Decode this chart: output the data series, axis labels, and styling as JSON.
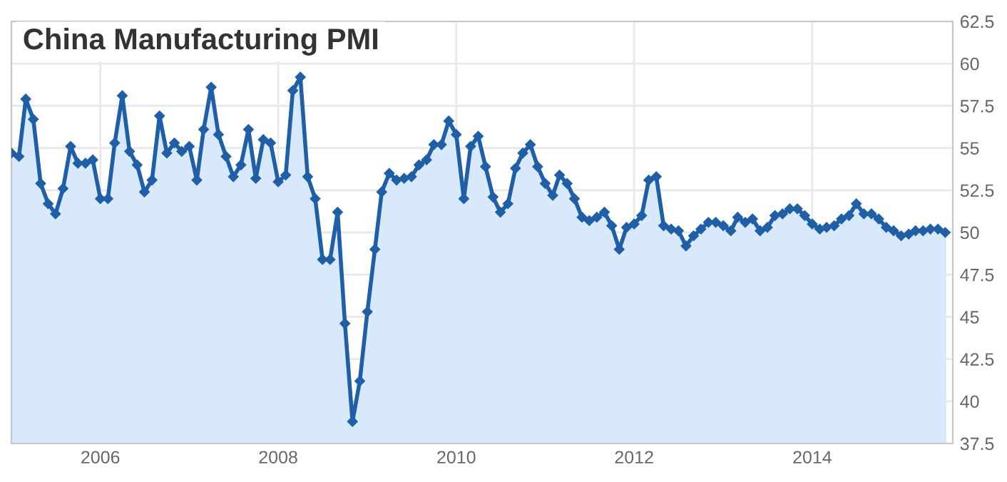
{
  "chart_data": {
    "type": "area",
    "title": "China Manufacturing PMI",
    "x": [
      "2005-01",
      "2005-02",
      "2005-03",
      "2005-04",
      "2005-05",
      "2005-06",
      "2005-07",
      "2005-08",
      "2005-09",
      "2005-10",
      "2005-11",
      "2005-12",
      "2006-01",
      "2006-02",
      "2006-03",
      "2006-04",
      "2006-05",
      "2006-06",
      "2006-07",
      "2006-08",
      "2006-09",
      "2006-10",
      "2006-11",
      "2006-12",
      "2007-01",
      "2007-02",
      "2007-03",
      "2007-04",
      "2007-05",
      "2007-06",
      "2007-07",
      "2007-08",
      "2007-09",
      "2007-10",
      "2007-11",
      "2007-12",
      "2008-01",
      "2008-02",
      "2008-03",
      "2008-04",
      "2008-05",
      "2008-06",
      "2008-07",
      "2008-08",
      "2008-09",
      "2008-10",
      "2008-11",
      "2008-12",
      "2009-01",
      "2009-02",
      "2009-03",
      "2009-04",
      "2009-05",
      "2009-06",
      "2009-07",
      "2009-08",
      "2009-09",
      "2009-10",
      "2009-11",
      "2009-12",
      "2010-01",
      "2010-02",
      "2010-03",
      "2010-04",
      "2010-05",
      "2010-06",
      "2010-07",
      "2010-08",
      "2010-09",
      "2010-10",
      "2010-11",
      "2010-12",
      "2011-01",
      "2011-02",
      "2011-03",
      "2011-04",
      "2011-05",
      "2011-06",
      "2011-07",
      "2011-08",
      "2011-09",
      "2011-10",
      "2011-11",
      "2011-12",
      "2012-01",
      "2012-02",
      "2012-03",
      "2012-04",
      "2012-05",
      "2012-06",
      "2012-07",
      "2012-08",
      "2012-09",
      "2012-10",
      "2012-11",
      "2012-12",
      "2013-01",
      "2013-02",
      "2013-03",
      "2013-04",
      "2013-05",
      "2013-06",
      "2013-07",
      "2013-08",
      "2013-09",
      "2013-10",
      "2013-11",
      "2013-12",
      "2014-01",
      "2014-02",
      "2014-03",
      "2014-04",
      "2014-05",
      "2014-06",
      "2014-07",
      "2014-08",
      "2014-09",
      "2014-10",
      "2014-11",
      "2014-12",
      "2015-01",
      "2015-02",
      "2015-03",
      "2015-04",
      "2015-05",
      "2015-06",
      "2015-07"
    ],
    "series": [
      {
        "color": "#1f5fa8",
        "values": [
          54.7,
          54.5,
          57.9,
          56.7,
          52.9,
          51.7,
          51.1,
          52.6,
          55.1,
          54.1,
          54.1,
          54.3,
          52.0,
          52.0,
          55.3,
          58.1,
          54.8,
          54.0,
          52.4,
          53.1,
          56.9,
          54.7,
          55.3,
          54.8,
          55.1,
          53.1,
          56.1,
          58.6,
          55.8,
          54.5,
          53.3,
          54.0,
          56.1,
          53.2,
          55.5,
          55.3,
          53.0,
          53.4,
          58.4,
          59.2,
          53.3,
          52.0,
          48.4,
          48.4,
          51.2,
          44.6,
          38.8,
          41.2,
          45.3,
          49.0,
          52.4,
          53.5,
          53.1,
          53.2,
          53.3,
          54.0,
          54.3,
          55.2,
          55.2,
          56.6,
          55.8,
          52.0,
          55.1,
          55.7,
          53.9,
          52.1,
          51.2,
          51.7,
          53.8,
          54.7,
          55.2,
          53.9,
          52.9,
          52.2,
          53.4,
          52.9,
          52.0,
          50.9,
          50.7,
          50.9,
          51.2,
          50.4,
          49.0,
          50.3,
          50.5,
          51.0,
          53.1,
          53.3,
          50.4,
          50.2,
          50.1,
          49.2,
          49.8,
          50.2,
          50.6,
          50.6,
          50.4,
          50.1,
          50.9,
          50.6,
          50.8,
          50.1,
          50.3,
          51.0,
          51.1,
          51.4,
          51.4,
          51.0,
          50.5,
          50.2,
          50.3,
          50.4,
          50.8,
          51.0,
          51.7,
          51.1,
          51.1,
          50.8,
          50.3,
          50.1,
          49.8,
          49.9,
          50.1,
          50.1,
          50.2,
          50.2,
          50.0
        ]
      }
    ],
    "xlim": [
      "2005-01",
      "2015-08"
    ],
    "xticks": [
      "2006",
      "2008",
      "2010",
      "2012",
      "2014"
    ],
    "ylim": [
      37.5,
      62.5
    ],
    "yticks": [
      37.5,
      40,
      42.5,
      45,
      47.5,
      50,
      52.5,
      55,
      57.5,
      60,
      62.5
    ],
    "grid": true,
    "marker": "diamond",
    "line_style": "solid"
  }
}
